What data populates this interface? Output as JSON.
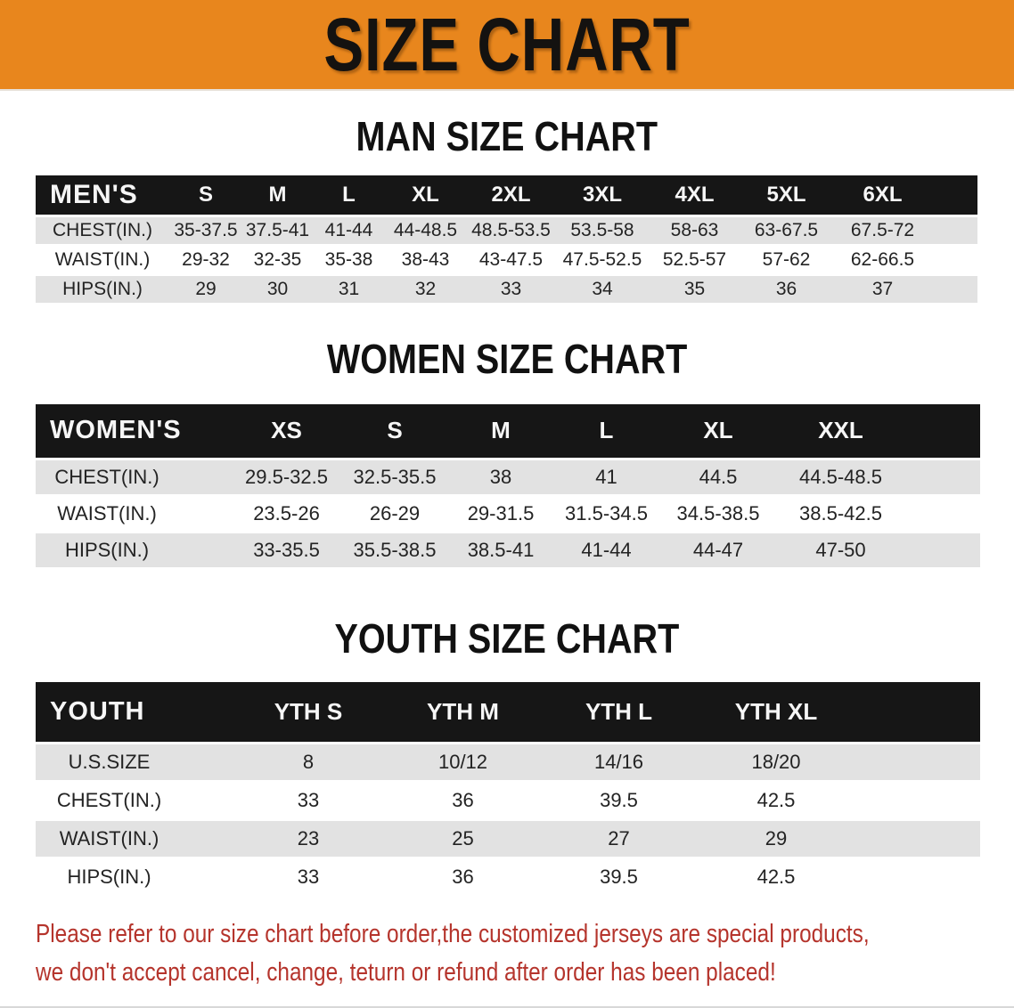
{
  "banner": {
    "title": "SIZE CHART",
    "bg_color": "#E8861D"
  },
  "colors": {
    "accent_orange": "#E8861D",
    "table_header_black": "#161616",
    "stripe_gray": "#E2E2E2",
    "disclaimer_red": "#B5342C"
  },
  "sections": [
    {
      "id": "men",
      "heading": "MAN SIZE CHART",
      "table": {
        "label": "MEN'S",
        "columns": [
          "S",
          "M",
          "L",
          "XL",
          "2XL",
          "3XL",
          "4XL",
          "5XL",
          "6XL"
        ],
        "rows": [
          {
            "label": "CHEST(IN.)",
            "values": [
              "35-37.5",
              "37.5-41",
              "41-44",
              "44-48.5",
              "48.5-53.5",
              "53.5-58",
              "58-63",
              "63-67.5",
              "67.5-72"
            ]
          },
          {
            "label": "WAIST(IN.)",
            "values": [
              "29-32",
              "32-35",
              "35-38",
              "38-43",
              "43-47.5",
              "47.5-52.5",
              "52.5-57",
              "57-62",
              "62-66.5"
            ]
          },
          {
            "label": "HIPS(IN.)",
            "values": [
              "29",
              "30",
              "31",
              "32",
              "33",
              "34",
              "35",
              "36",
              "37"
            ]
          }
        ]
      }
    },
    {
      "id": "women",
      "heading": "WOMEN SIZE CHART",
      "table": {
        "label": "WOMEN'S",
        "columns": [
          "XS",
          "S",
          "M",
          "L",
          "XL",
          "XXL"
        ],
        "rows": [
          {
            "label": "CHEST(IN.)",
            "values": [
              "29.5-32.5",
              "32.5-35.5",
              "38",
              "41",
              "44.5",
              "44.5-48.5"
            ]
          },
          {
            "label": "WAIST(IN.)",
            "values": [
              "23.5-26",
              "26-29",
              "29-31.5",
              "31.5-34.5",
              "34.5-38.5",
              "38.5-42.5"
            ]
          },
          {
            "label": "HIPS(IN.)",
            "values": [
              "33-35.5",
              "35.5-38.5",
              "38.5-41",
              "41-44",
              "44-47",
              "47-50"
            ]
          }
        ]
      }
    },
    {
      "id": "youth",
      "heading": "YOUTH SIZE CHART",
      "table": {
        "label": "YOUTH",
        "columns": [
          "YTH S",
          "YTH M",
          "YTH L",
          "YTH XL"
        ],
        "rows": [
          {
            "label": "U.S.SIZE",
            "values": [
              "8",
              "10/12",
              "14/16",
              "18/20"
            ]
          },
          {
            "label": "CHEST(IN.)",
            "values": [
              "33",
              "36",
              "39.5",
              "42.5"
            ]
          },
          {
            "label": "WAIST(IN.)",
            "values": [
              "23",
              "25",
              "27",
              "29"
            ]
          },
          {
            "label": "HIPS(IN.)",
            "values": [
              "33",
              "36",
              "39.5",
              "42.5"
            ]
          }
        ]
      }
    }
  ],
  "disclaimer": {
    "line1": "Please refer to our size chart before order,the customized jerseys are special products,",
    "line2": "we don't accept cancel, change, teturn or refund after order has been placed!"
  }
}
